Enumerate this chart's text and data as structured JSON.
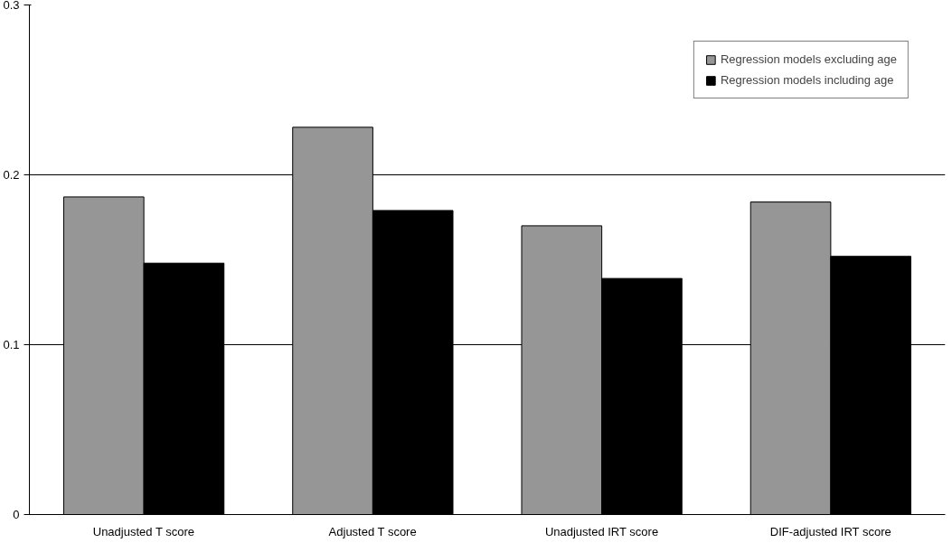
{
  "chart_data": {
    "type": "bar",
    "categories": [
      "Unadjusted T score",
      "Adjusted T score",
      "Unadjusted IRT score",
      "DIF-adjusted IRT score"
    ],
    "series": [
      {
        "name": "Regression models excluding age",
        "color": "#969696",
        "values": [
          0.187,
          0.228,
          0.17,
          0.184
        ]
      },
      {
        "name": "Regression models including age",
        "color": "#000000",
        "values": [
          0.148,
          0.179,
          0.139,
          0.152
        ]
      }
    ],
    "ylim": [
      0,
      0.3
    ],
    "yticks": [
      0,
      0.1,
      0.2,
      0.3
    ],
    "grid": "y",
    "legend": "top right"
  }
}
